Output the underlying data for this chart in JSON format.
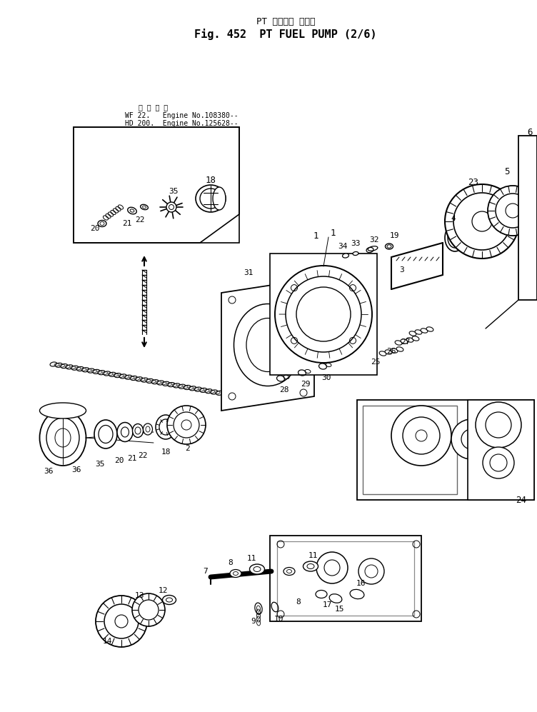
{
  "title_jp": "PT フェエル ボンプ",
  "title_en": "Fig. 452  PT FUEL PUMP (2/6)",
  "inset_jp": "適用号機",
  "inset_l1": "WF 22.   Engine No.108380--",
  "inset_l2": "HD 200.  Engine No.125628--",
  "bg": "#ffffff",
  "fg": "#000000",
  "fig_w": 7.52,
  "fig_h": 9.97
}
